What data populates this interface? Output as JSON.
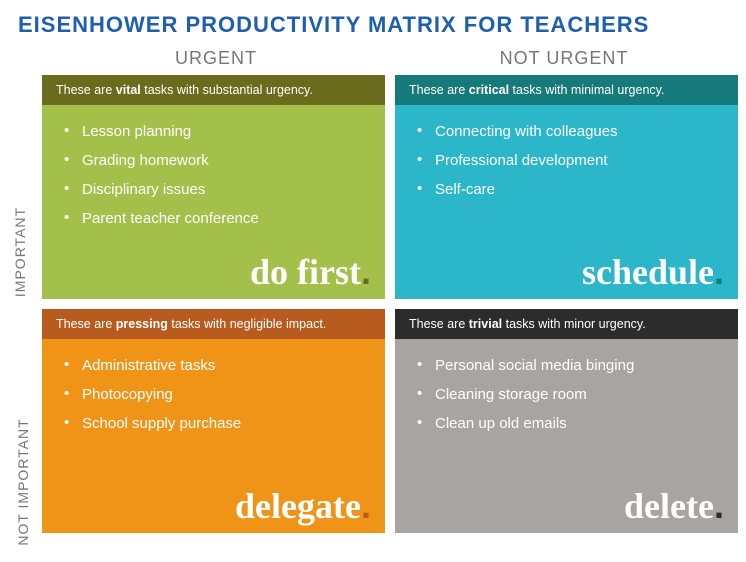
{
  "title": "EISENHOWER PRODUCTIVITY MATRIX FOR TEACHERS",
  "title_color": "#1f5fb0",
  "columns": {
    "urgent": "URGENT",
    "not_urgent": "NOT URGENT"
  },
  "rows": {
    "important": "IMPORTANT",
    "not_important": "NOT IMPORTANT"
  },
  "quadrants": {
    "do_first": {
      "desc_prefix": "These are ",
      "desc_bold": "vital",
      "desc_suffix": " tasks with substantial urgency.",
      "header_bg": "#6b6b1e",
      "body_bg": "#a3c14a",
      "bullet_color": "#ffffff",
      "items": [
        "Lesson planning",
        "Grading homework",
        "Disciplinary issues",
        "Parent teacher conference"
      ],
      "action": "do first",
      "dot_color": "#6b6b1e"
    },
    "schedule": {
      "desc_prefix": "These are ",
      "desc_bold": "critical",
      "desc_suffix": " tasks with minimal urgency.",
      "header_bg": "#167a7a",
      "body_bg": "#2bb6c9",
      "bullet_color": "#ffffff",
      "items": [
        "Connecting with colleagues",
        "Professional development",
        "Self-care"
      ],
      "action": "schedule",
      "dot_color": "#167a7a"
    },
    "delegate": {
      "desc_prefix": "These are ",
      "desc_bold": "pressing",
      "desc_suffix": " tasks with negligible impact.",
      "header_bg": "#b85b1f",
      "body_bg": "#f09417",
      "bullet_color": "#ffffff",
      "items": [
        "Administrative tasks",
        "Photocopying",
        "School supply purchase"
      ],
      "action": "delegate",
      "dot_color": "#b85b1f"
    },
    "delete": {
      "desc_prefix": "These are ",
      "desc_bold": "trivial",
      "desc_suffix": " tasks with minor urgency.",
      "header_bg": "#2c2c2c",
      "body_bg": "#a8a4a1",
      "bullet_color": "#ffffff",
      "items": [
        "Personal social media binging",
        "Cleaning storage room",
        "Clean up old emails"
      ],
      "action": "delete",
      "dot_color": "#2c2c2c"
    }
  }
}
